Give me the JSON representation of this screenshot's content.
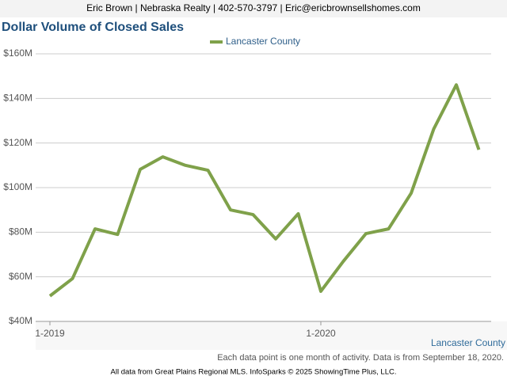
{
  "header": "Eric Brown | Nebraska Realty | 402-570-3797 | Eric@ericbrownsellshomes.com",
  "chart_data": {
    "type": "line",
    "title": "Dollar Volume of Closed Sales",
    "categories": [
      "1-2019",
      null,
      null,
      null,
      null,
      null,
      null,
      null,
      null,
      null,
      null,
      null,
      "1-2020",
      null,
      null,
      null,
      null,
      null,
      null,
      null
    ],
    "series": [
      {
        "name": "Lancaster County",
        "color": "#7fa14a",
        "values": [
          51.4,
          59.2,
          81.5,
          79,
          108.2,
          113.8,
          110,
          107.8,
          90,
          87.9,
          77,
          88.3,
          53.5,
          67,
          79.4,
          81.5,
          97.5,
          126.3,
          146.1,
          117
        ]
      }
    ],
    "ylim": [
      40,
      160
    ],
    "yticks": [
      {
        "value": 40,
        "label": "$40M"
      },
      {
        "value": 60,
        "label": "$60M"
      },
      {
        "value": 80,
        "label": "$80M"
      },
      {
        "value": 100,
        "label": "$100M"
      },
      {
        "value": 120,
        "label": "$120M"
      },
      {
        "value": 140,
        "label": "$140M"
      },
      {
        "value": 160,
        "label": "$160M"
      }
    ],
    "grid": true,
    "legend": "top",
    "area_label": "Lancaster County",
    "note": "Each data point is one month of activity. Data is from September 18, 2020."
  },
  "footer": "All data from Great Plains Regional MLS. InfoSparks © 2025 ShowingTime Plus, LLC."
}
